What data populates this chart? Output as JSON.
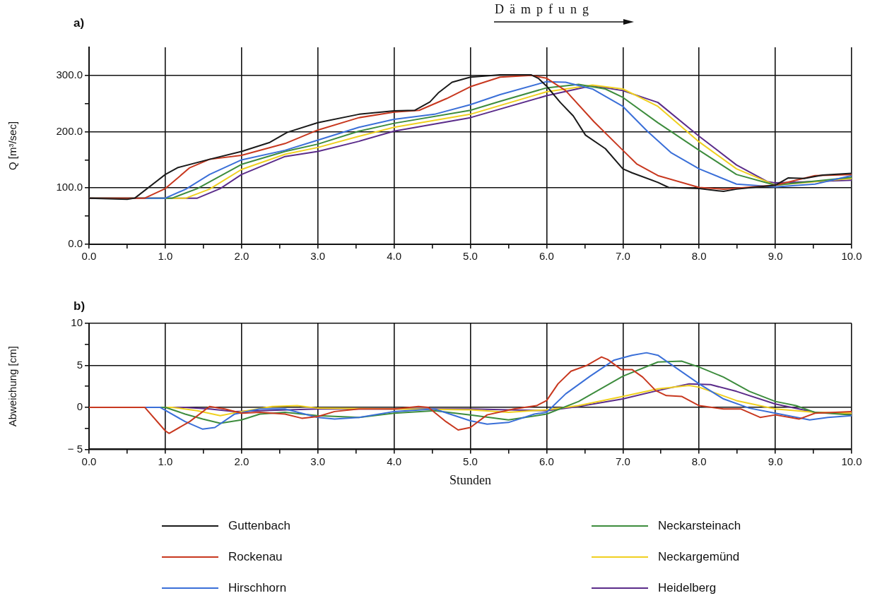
{
  "chart_data": [
    {
      "type": "line",
      "annotations": [
        "a)",
        "Dämpfung"
      ],
      "ylabel": "Q [m³/sec]",
      "xlim": [
        0,
        10
      ],
      "ylim": [
        0,
        350
      ],
      "xticks": [
        {
          "value": 0,
          "label": "0.0"
        },
        {
          "value": 0.5,
          "label": null
        },
        {
          "value": 1,
          "label": "1.0"
        },
        {
          "value": 1.5,
          "label": null
        },
        {
          "value": 2,
          "label": "2.0"
        },
        {
          "value": 2.5,
          "label": null
        },
        {
          "value": 3,
          "label": "3.0"
        },
        {
          "value": 3.5,
          "label": null
        },
        {
          "value": 4,
          "label": "4.0"
        },
        {
          "value": 4.5,
          "label": null
        },
        {
          "value": 5,
          "label": "5.0"
        },
        {
          "value": 5.5,
          "label": null
        },
        {
          "value": 6,
          "label": "6.0"
        },
        {
          "value": 6.5,
          "label": null
        },
        {
          "value": 7,
          "label": "7.0"
        },
        {
          "value": 7.5,
          "label": null
        },
        {
          "value": 8,
          "label": "8.0"
        },
        {
          "value": 8.5,
          "label": null
        },
        {
          "value": 9,
          "label": "9.0"
        },
        {
          "value": 9.5,
          "label": null
        },
        {
          "value": 10,
          "label": "10.0"
        }
      ],
      "yticks": [
        {
          "value": 0,
          "label": "0.0"
        },
        {
          "value": 50,
          "label": null
        },
        {
          "value": 100,
          "label": "100.0"
        },
        {
          "value": 150,
          "label": null
        },
        {
          "value": 200,
          "label": "200.0"
        },
        {
          "value": 250,
          "label": null
        },
        {
          "value": 300,
          "label": "300.0"
        }
      ],
      "grid": true,
      "legend": "bottom",
      "marker": "none",
      "line_style": "solid",
      "series": [
        {
          "name": "Guttenbach",
          "color": "#1a1a1a",
          "x": [
            0,
            0.5,
            0.6,
            1.0,
            1.16,
            1.58,
            2.0,
            2.37,
            2.6,
            3.0,
            3.54,
            4.0,
            4.27,
            4.47,
            4.58,
            4.76,
            5.0,
            5.39,
            5.8,
            5.89,
            6.0,
            6.18,
            6.35,
            6.51,
            6.77,
            7.0,
            7.12,
            7.46,
            7.6,
            8.0,
            8.32,
            8.49,
            9.0,
            9.17,
            9.38,
            9.62,
            10.0
          ],
          "values": [
            82,
            80,
            82,
            124,
            136,
            151,
            165,
            181,
            199,
            216,
            231,
            237,
            238,
            253,
            269,
            288,
            297,
            301,
            301,
            295,
            281,
            252,
            228,
            194,
            170,
            134,
            127,
            110,
            101,
            99,
            94,
            98,
            105,
            118,
            117,
            123,
            126
          ]
        },
        {
          "name": "Rockenau",
          "color": "#c8381f",
          "x": [
            0,
            0.73,
            1.0,
            1.32,
            1.58,
            2.0,
            2.57,
            3.0,
            3.54,
            4.0,
            4.33,
            4.69,
            5.0,
            5.39,
            5.8,
            6.0,
            6.25,
            6.62,
            7.0,
            7.18,
            7.46,
            8.0,
            8.32,
            9.0,
            9.52,
            10.0
          ],
          "values": [
            82,
            82,
            99,
            136,
            151,
            158,
            179,
            203,
            225,
            235,
            238,
            259,
            280,
            297,
            300,
            295,
            273,
            218,
            167,
            143,
            122,
            101,
            98,
            105,
            122,
            124
          ]
        },
        {
          "name": "Hirschhorn",
          "color": "#3a6fd8",
          "x": [
            0,
            1.0,
            1.27,
            1.58,
            2.0,
            2.57,
            3.0,
            3.54,
            4.0,
            4.53,
            5.0,
            5.39,
            6.0,
            6.25,
            6.6,
            7.0,
            7.32,
            7.63,
            8.0,
            8.49,
            9.0,
            9.52,
            10.0
          ],
          "values": [
            82,
            82,
            98,
            124,
            150,
            167,
            185,
            208,
            222,
            231,
            248,
            266,
            289,
            288,
            276,
            245,
            201,
            163,
            134,
            107,
            102,
            107,
            122
          ]
        },
        {
          "name": "Neckarsteinach",
          "color": "#3d8c3d",
          "x": [
            0,
            1.09,
            1.42,
            2.0,
            2.57,
            3.0,
            3.54,
            4.0,
            5.0,
            5.39,
            6.0,
            6.42,
            6.77,
            7.0,
            7.46,
            8.0,
            8.49,
            9.0,
            10.0
          ],
          "values": [
            82,
            82,
            99,
            142,
            165,
            178,
            201,
            215,
            238,
            254,
            278,
            284,
            276,
            261,
            216,
            167,
            124,
            105,
            119
          ]
        },
        {
          "name": "Neckargemünd",
          "color": "#f0d020",
          "x": [
            0,
            1.27,
            1.58,
            2.0,
            2.57,
            3.0,
            3.54,
            4.0,
            5.0,
            6.0,
            6.6,
            7.0,
            7.46,
            8.0,
            8.49,
            9.0,
            10.0
          ],
          "values": [
            82,
            82,
            98,
            133,
            160,
            172,
            192,
            208,
            231,
            271,
            283,
            276,
            245,
            182,
            134,
            105,
            117
          ]
        },
        {
          "name": "Heidelberg",
          "color": "#5b2c8a",
          "x": [
            0,
            1.42,
            1.72,
            2.0,
            2.57,
            3.0,
            3.54,
            4.0,
            5.0,
            6.0,
            6.6,
            7.0,
            7.46,
            8.0,
            8.49,
            8.9,
            9.0,
            10.0
          ],
          "values": [
            82,
            82,
            99,
            124,
            156,
            165,
            183,
            201,
            225,
            264,
            282,
            273,
            252,
            192,
            141,
            111,
            109,
            114
          ]
        }
      ]
    },
    {
      "type": "line",
      "annotations": [
        "b)"
      ],
      "xlabel": "Stunden",
      "ylabel": "Abweichung [cm]",
      "xlim": [
        0,
        10
      ],
      "ylim": [
        -5,
        10
      ],
      "xticks": [
        {
          "value": 0,
          "label": "0.0"
        },
        {
          "value": 0.5,
          "label": null
        },
        {
          "value": 1,
          "label": "1.0"
        },
        {
          "value": 1.5,
          "label": null
        },
        {
          "value": 2,
          "label": "2.0"
        },
        {
          "value": 2.5,
          "label": null
        },
        {
          "value": 3,
          "label": "3.0"
        },
        {
          "value": 3.5,
          "label": null
        },
        {
          "value": 4,
          "label": "4.0"
        },
        {
          "value": 4.5,
          "label": null
        },
        {
          "value": 5,
          "label": "5.0"
        },
        {
          "value": 5.5,
          "label": null
        },
        {
          "value": 6,
          "label": "6.0"
        },
        {
          "value": 6.5,
          "label": null
        },
        {
          "value": 7,
          "label": "7.0"
        },
        {
          "value": 7.5,
          "label": null
        },
        {
          "value": 8,
          "label": "8.0"
        },
        {
          "value": 8.5,
          "label": null
        },
        {
          "value": 9,
          "label": "9.0"
        },
        {
          "value": 9.5,
          "label": null
        },
        {
          "value": 10,
          "label": "10.0"
        }
      ],
      "yticks": [
        {
          "value": -5,
          "label": "− 5"
        },
        {
          "value": -2.5,
          "label": null
        },
        0,
        {
          "value": 2.5,
          "label": null
        },
        5,
        {
          "value": 7.5,
          "label": null
        },
        10
      ],
      "grid": true,
      "marker": "none",
      "line_style": "solid",
      "series": [
        {
          "color": "#c8381f",
          "x": [
            0,
            0.73,
            1.0,
            1.05,
            1.32,
            1.58,
            1.78,
            2.0,
            2.24,
            2.57,
            2.79,
            3.0,
            3.22,
            3.54,
            4.0,
            4.32,
            4.45,
            4.68,
            4.84,
            5.0,
            5.22,
            5.57,
            5.87,
            6.0,
            6.15,
            6.32,
            6.53,
            6.72,
            6.8,
            6.98,
            7.12,
            7.26,
            7.43,
            7.57,
            7.77,
            8.0,
            8.32,
            8.55,
            8.8,
            9.0,
            9.31,
            9.52,
            10.0
          ],
          "values": [
            0,
            0,
            -2.8,
            -3.1,
            -1.7,
            0.1,
            -0.2,
            -0.7,
            -0.6,
            -0.8,
            -1.3,
            -1.1,
            -0.5,
            -0.2,
            -0.2,
            0.1,
            0,
            -1.7,
            -2.7,
            -2.4,
            -0.9,
            -0.2,
            0.2,
            0.8,
            2.8,
            4.3,
            5.0,
            6.0,
            5.7,
            4.5,
            4.5,
            3.6,
            2.0,
            1.4,
            1.3,
            0.2,
            -0.2,
            -0.2,
            -1.2,
            -0.9,
            -1.4,
            -0.7,
            -0.5
          ]
        },
        {
          "color": "#3a6fd8",
          "x": [
            0,
            0.93,
            1.26,
            1.49,
            1.65,
            1.91,
            2.24,
            2.57,
            3.0,
            3.22,
            3.54,
            4.0,
            4.53,
            5.0,
            5.22,
            5.5,
            5.84,
            6.0,
            6.25,
            6.57,
            6.88,
            7.12,
            7.31,
            7.46,
            8.0,
            8.32,
            8.66,
            9.0,
            9.45,
            9.69,
            10.0
          ],
          "values": [
            0,
            0,
            -1.7,
            -2.6,
            -2.4,
            -0.8,
            -0.2,
            -0.2,
            -1.2,
            -1.4,
            -1.2,
            -0.5,
            -0.2,
            -1.6,
            -2.0,
            -1.8,
            -0.8,
            -0.6,
            1.6,
            3.7,
            5.6,
            6.2,
            6.5,
            6.2,
            2.8,
            1.0,
            -0.1,
            -0.7,
            -1.5,
            -1.2,
            -1.0
          ]
        },
        {
          "color": "#3d8c3d",
          "x": [
            0,
            1.0,
            1.26,
            1.49,
            1.72,
            2.0,
            2.24,
            2.57,
            3.0,
            3.54,
            4.0,
            4.53,
            5.0,
            5.5,
            6.0,
            6.42,
            7.0,
            7.46,
            7.77,
            8.0,
            8.32,
            8.66,
            9.0,
            9.27,
            9.52,
            10.0
          ],
          "values": [
            0,
            0,
            -0.8,
            -1.4,
            -1.9,
            -1.5,
            -0.8,
            -0.6,
            -1.0,
            -1.2,
            -0.7,
            -0.4,
            -0.9,
            -1.5,
            -0.8,
            0.7,
            3.7,
            5.4,
            5.5,
            4.8,
            3.6,
            1.9,
            0.7,
            0.2,
            -0.6,
            -0.9
          ]
        },
        {
          "color": "#f0d020",
          "x": [
            0,
            1.09,
            1.42,
            1.72,
            2.0,
            2.4,
            2.73,
            3.0,
            4.0,
            5.0,
            5.5,
            6.0,
            6.42,
            7.0,
            7.46,
            7.87,
            8.0,
            8.49,
            9.0,
            9.52,
            10.0
          ],
          "values": [
            0,
            0,
            -0.4,
            -1.0,
            -0.5,
            0.1,
            0.2,
            -0.1,
            -0.2,
            -0.3,
            -0.6,
            -0.3,
            0.2,
            1.3,
            2.2,
            2.6,
            2.4,
            0.8,
            -0.2,
            -0.6,
            -0.7
          ]
        },
        {
          "color": "#5b2c8a",
          "x": [
            0,
            1.26,
            1.58,
            1.91,
            2.24,
            3.0,
            4.0,
            5.0,
            6.0,
            6.42,
            7.0,
            7.46,
            7.87,
            8.15,
            8.49,
            9.0,
            9.52,
            10.0
          ],
          "values": [
            0,
            0,
            -0.2,
            -0.5,
            -0.4,
            -0.2,
            -0.2,
            -0.2,
            -0.4,
            0.1,
            1.0,
            2.0,
            2.8,
            2.7,
            1.9,
            0.4,
            -0.6,
            -0.8
          ]
        }
      ]
    }
  ]
}
